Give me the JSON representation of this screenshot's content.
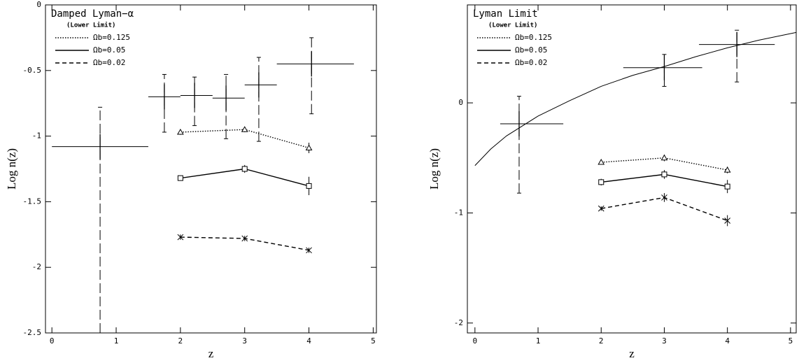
{
  "chart_data": [
    {
      "type": "errorbar",
      "title": "Damped Lyman−α",
      "subtitle": "(Lower Limit)",
      "xlabel": "z",
      "ylabel": "Log n(z)",
      "xlim": [
        -0.1,
        5.05
      ],
      "ylim": [
        -2.5,
        0
      ],
      "xticks": [
        0,
        1,
        2,
        3,
        4,
        5
      ],
      "yticks": [
        0,
        -0.5,
        -1,
        -1.5,
        -2,
        -2.5
      ],
      "observations": {
        "x": [
          0.75,
          1.75,
          2.22,
          2.71,
          3.22,
          4.04
        ],
        "x_lo": [
          0,
          1.5,
          2.0,
          2.5,
          3.0,
          3.5
        ],
        "x_hi": [
          1.5,
          2.0,
          2.5,
          3.0,
          3.5,
          4.7
        ],
        "y": [
          -1.08,
          -0.7,
          -0.69,
          -0.71,
          -0.61,
          -0.45
        ],
        "y_lo": [
          -2.5,
          -0.97,
          -0.92,
          -1.02,
          -1.04,
          -0.83
        ],
        "y_hi": [
          -0.78,
          -0.53,
          -0.55,
          -0.53,
          -0.4,
          -0.25
        ]
      },
      "series": [
        {
          "name": "Ωb=0.125",
          "color": "#000000",
          "linestyle": "dotted",
          "marker": "triangle",
          "x": [
            2,
            3,
            4
          ],
          "values": [
            -0.97,
            -0.95,
            -1.09
          ],
          "errors": [
            0.02,
            0.02,
            0.04
          ]
        },
        {
          "name": "Ωb=0.05",
          "color": "#000000",
          "linestyle": "solid",
          "marker": "square",
          "x": [
            2,
            3,
            4
          ],
          "values": [
            -1.32,
            -1.25,
            -1.38
          ],
          "errors": [
            0.02,
            0.03,
            0.07
          ]
        },
        {
          "name": "Ωb=0.02",
          "color": "#000000",
          "linestyle": "dashed",
          "marker": "cross",
          "x": [
            2,
            3,
            4
          ],
          "values": [
            -1.77,
            -1.78,
            -1.87
          ],
          "errors": [
            0.02,
            0.02,
            0.02
          ]
        }
      ]
    },
    {
      "type": "errorbar",
      "title": "Lyman Limit",
      "subtitle": "(Lower Limit)",
      "xlabel": "z",
      "ylabel": "Log n(z)",
      "xlim": [
        -0.12,
        5.09
      ],
      "ylim": [
        -2.09,
        0.89
      ],
      "xticks": [
        0,
        1,
        2,
        3,
        4,
        5
      ],
      "yticks": [
        0,
        -1,
        -2
      ],
      "observations": {
        "x": [
          0.7,
          3.0,
          4.15
        ],
        "x_lo": [
          0.4,
          2.35,
          3.55
        ],
        "x_hi": [
          1.4,
          3.6,
          4.75
        ],
        "y": [
          -0.19,
          0.32,
          0.53
        ],
        "y_lo": [
          -0.82,
          0.15,
          0.19
        ],
        "y_hi": [
          0.06,
          0.44,
          0.66
        ]
      },
      "fit": {
        "color": "#000000",
        "x": [
          0,
          0.25,
          0.5,
          1,
          1.5,
          2,
          2.5,
          3,
          3.5,
          4,
          4.5,
          5.09
        ],
        "values": [
          -0.57,
          -0.42,
          -0.3,
          -0.12,
          0.02,
          0.15,
          0.25,
          0.33,
          0.42,
          0.5,
          0.57,
          0.64
        ]
      },
      "series": [
        {
          "name": "Ωb=0.125",
          "color": "#000000",
          "linestyle": "dotted",
          "marker": "triangle",
          "x": [
            2,
            3,
            4
          ],
          "values": [
            -0.54,
            -0.5,
            -0.61
          ],
          "errors": [
            0.02,
            0.03,
            0.03
          ]
        },
        {
          "name": "Ωb=0.05",
          "color": "#000000",
          "linestyle": "solid",
          "marker": "square",
          "x": [
            2,
            3,
            4
          ],
          "values": [
            -0.72,
            -0.65,
            -0.76
          ],
          "errors": [
            0.03,
            0.04,
            0.06
          ]
        },
        {
          "name": "Ωb=0.02",
          "color": "#000000",
          "linestyle": "dashed",
          "marker": "cross",
          "x": [
            2,
            3,
            4
          ],
          "values": [
            -0.96,
            -0.86,
            -1.07
          ],
          "errors": [
            0.02,
            0.04,
            0.05
          ]
        }
      ]
    }
  ]
}
